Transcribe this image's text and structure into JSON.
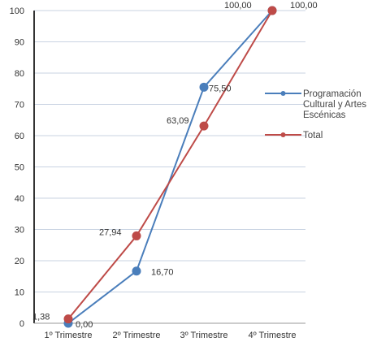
{
  "chart_data": {
    "type": "line",
    "categories": [
      "1º Trimestre",
      "2º Trimestre",
      "3º Trimestre",
      "4º Trimestre"
    ],
    "ylim": [
      0,
      100
    ],
    "yticks": [
      "0",
      "10",
      "20",
      "30",
      "40",
      "50",
      "60",
      "70",
      "80",
      "90",
      "100"
    ],
    "grid": true,
    "legend_position": "right",
    "series": [
      {
        "name": "Programación Cultural y Artes Escénicas",
        "legend_lines": [
          "Programación",
          "Cultural y Artes",
          "Escénicas"
        ],
        "values": [
          0.0,
          16.7,
          75.5,
          100.0
        ],
        "labels": [
          "0,00",
          "16,70",
          "75,50",
          "100,00"
        ],
        "color": "#4a7ebb"
      },
      {
        "name": "Total",
        "legend_lines": [
          "Total"
        ],
        "values": [
          1.38,
          27.94,
          63.09,
          100.0
        ],
        "labels": [
          "1,38",
          "27,94",
          "63,09",
          "100,00"
        ],
        "color": "#be4b48"
      }
    ]
  }
}
